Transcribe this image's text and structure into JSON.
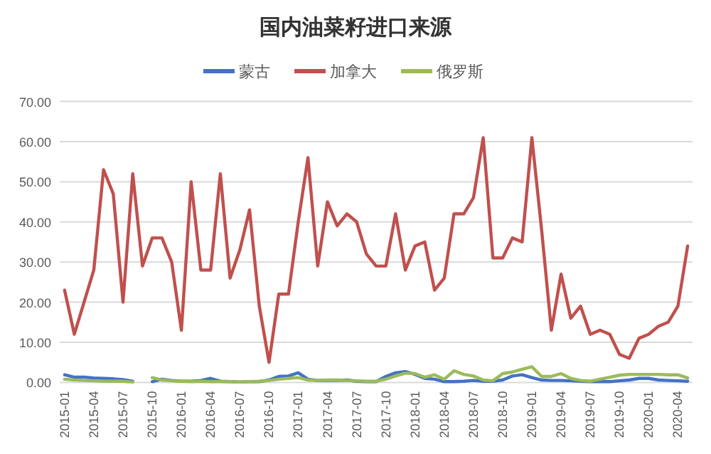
{
  "chart_data": {
    "type": "line",
    "title": "国内油菜籽进口来源",
    "categories": [
      "2015-01",
      null,
      null,
      "2015-04",
      null,
      null,
      "2015-07",
      null,
      null,
      "2015-10",
      null,
      null,
      "2016-01",
      null,
      null,
      "2016-04",
      null,
      null,
      "2016-07",
      null,
      null,
      "2016-10",
      null,
      null,
      "2017-01",
      null,
      null,
      "2017-04",
      null,
      null,
      "2017-07",
      null,
      null,
      "2017-10",
      null,
      null,
      "2018-01",
      null,
      null,
      "2018-04",
      null,
      null,
      "2018-07",
      null,
      null,
      "2018-10",
      null,
      null,
      "2019-01",
      null,
      null,
      "2019-04",
      null,
      null,
      "2019-07",
      null,
      null,
      "2019-10",
      null,
      null,
      "2020-01",
      null,
      null,
      "2020-04",
      null
    ],
    "series": [
      {
        "name": "蒙古",
        "color": "#4472c4",
        "values": [
          1.9,
          1.3,
          1.3,
          1.1,
          1,
          0.9,
          0.7,
          0.3,
          null,
          0.2,
          0.8,
          0.5,
          0.3,
          0.3,
          0.5,
          1,
          0.3,
          0.2,
          0.1,
          0.2,
          0.2,
          0.6,
          1.5,
          1.6,
          2.4,
          0.8,
          0.5,
          0.5,
          0.5,
          0.6,
          0.3,
          0.2,
          0.2,
          1.5,
          2.4,
          2.7,
          2,
          1,
          0.8,
          0.2,
          0.2,
          0.3,
          0.5,
          0.3,
          0.3,
          0.6,
          1.6,
          1.9,
          1.2,
          0.6,
          0.5,
          0.5,
          0.4,
          0.3,
          0.2,
          0.2,
          0.2,
          0.4,
          0.6,
          1,
          1,
          0.6,
          0.5,
          0.4,
          0.3
        ]
      },
      {
        "name": "加拿大",
        "color": "#c0504d",
        "values": [
          23,
          12,
          20,
          28,
          53,
          47,
          20,
          52,
          29,
          36,
          36,
          30,
          13,
          50,
          28,
          28,
          52,
          26,
          33,
          43,
          19,
          5,
          22,
          22,
          40,
          56,
          29,
          45,
          39,
          42,
          40,
          32,
          29,
          29,
          42,
          28,
          34,
          35,
          23,
          26,
          42,
          42,
          46,
          61,
          31,
          31,
          36,
          35,
          61,
          38,
          13,
          27,
          16,
          19,
          12,
          13,
          12,
          7,
          6,
          11,
          12,
          14,
          15,
          19,
          34
        ]
      },
      {
        "name": "俄罗斯",
        "color": "#9bbb59",
        "values": [
          0.8,
          0.6,
          0.5,
          0.4,
          0.3,
          0.3,
          0.3,
          0.1,
          null,
          1.2,
          0.6,
          0.4,
          0.3,
          0.2,
          0.3,
          0.2,
          0.2,
          0.2,
          0.1,
          0.2,
          0.3,
          0.5,
          0.8,
          1,
          1.2,
          0.6,
          0.5,
          0.6,
          0.6,
          0.5,
          0.4,
          0.3,
          0.3,
          0.8,
          1.6,
          2.3,
          2.2,
          1.3,
          1.9,
          0.8,
          2.9,
          2,
          1.6,
          0.6,
          0.4,
          2.2,
          2.6,
          3.3,
          3.9,
          1.5,
          1.5,
          2.2,
          1,
          0.5,
          0.3,
          0.8,
          1.3,
          1.8,
          2,
          2,
          2,
          2,
          1.9,
          1.9,
          1.1
        ]
      }
    ],
    "ylim": [
      0,
      70
    ],
    "yticks": [
      {
        "value": 0,
        "label": "0.00"
      },
      {
        "value": 10,
        "label": "10.00"
      },
      {
        "value": 20,
        "label": "20.00"
      },
      {
        "value": 30,
        "label": "30.00"
      },
      {
        "value": 40,
        "label": "40.00"
      },
      {
        "value": 50,
        "label": "50.00"
      },
      {
        "value": 60,
        "label": "60.00"
      },
      {
        "value": 70,
        "label": "70.00"
      }
    ],
    "grid": "y",
    "legend": "top"
  }
}
